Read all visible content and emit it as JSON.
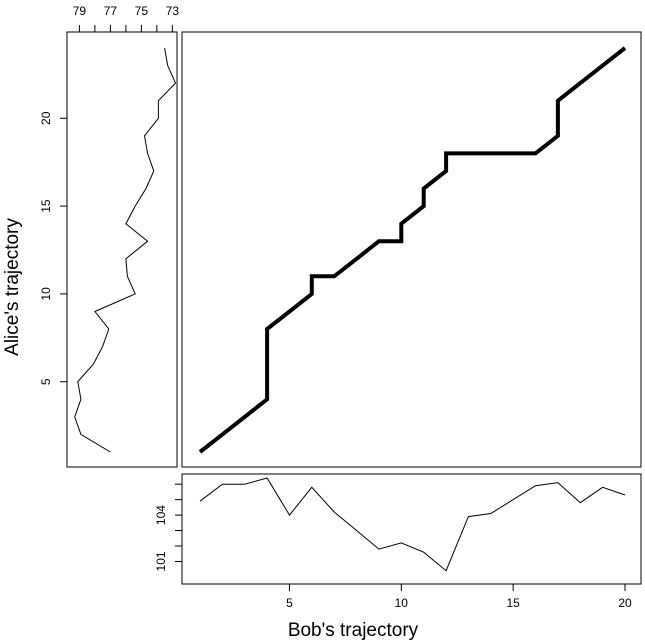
{
  "chart_data": [
    {
      "id": "main",
      "type": "line",
      "description_of_axes": "x is Bob's index, y is Alice's index (warping path)",
      "xlim": [
        1,
        20
      ],
      "ylim": [
        1,
        24
      ],
      "x": [
        1,
        2,
        3,
        4,
        4,
        5,
        6,
        6,
        7,
        8,
        9,
        10,
        10,
        11,
        11,
        12,
        12,
        13,
        14,
        15,
        16,
        17,
        17,
        18,
        19,
        20
      ],
      "y": [
        1,
        2,
        3,
        4,
        8,
        9,
        10,
        11,
        11,
        12,
        13,
        13,
        14,
        15,
        16,
        17,
        18,
        18,
        18,
        18,
        18,
        19,
        21,
        22,
        23,
        24
      ]
    },
    {
      "id": "left",
      "type": "line",
      "ylim": [
        1,
        24
      ],
      "xlim_reversed": [
        79.8,
        72.7
      ],
      "x": [
        77.0,
        78.9,
        79.3,
        78.9,
        79.1,
        78.1,
        77.5,
        77.1,
        78.0,
        75.4,
        75.9,
        76.0,
        74.6,
        76.0,
        75.4,
        74.7,
        74.2,
        74.6,
        74.8,
        73.9,
        73.9,
        72.8,
        73.3,
        73.5
      ],
      "y": [
        1,
        2,
        3,
        4,
        5,
        6,
        7,
        8,
        9,
        10,
        11,
        12,
        13,
        14,
        15,
        16,
        17,
        18,
        19,
        20,
        21,
        22,
        23,
        24
      ],
      "xticks": [
        79,
        78,
        77,
        76,
        75,
        74,
        73
      ],
      "xtick_labels": [
        "79",
        "",
        "77",
        "",
        "75",
        "",
        "73"
      ],
      "yticks": [
        5,
        10,
        15,
        20
      ],
      "ylabel": "Alice's trajectory"
    },
    {
      "id": "bottom",
      "type": "line",
      "xlim": [
        1,
        20
      ],
      "ylim": [
        99.8,
        106.4
      ],
      "x": [
        1,
        2,
        3,
        4,
        5,
        6,
        7,
        8,
        9,
        10,
        11,
        12,
        13,
        14,
        15,
        16,
        17,
        18,
        19,
        20
      ],
      "y": [
        104.9,
        106.0,
        106.0,
        106.4,
        104.0,
        105.8,
        104.2,
        103.0,
        101.8,
        102.2,
        101.6,
        100.4,
        103.9,
        104.1,
        105.0,
        105.9,
        106.1,
        104.8,
        105.8,
        105.3
      ],
      "xticks": [
        5,
        10,
        15,
        20
      ],
      "yticks": [
        101,
        102,
        103,
        104,
        105,
        106
      ],
      "ytick_labels": [
        "101",
        "",
        "",
        "104",
        "",
        ""
      ],
      "xlabel": "Bob's trajectory"
    }
  ]
}
